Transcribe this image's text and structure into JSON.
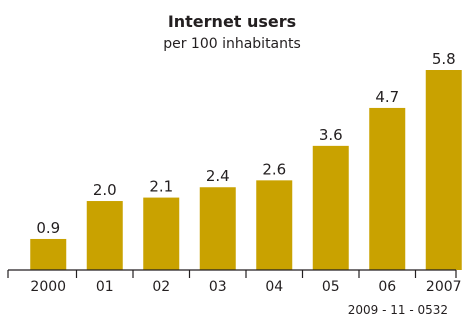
{
  "chart_data": {
    "type": "bar",
    "title": "Internet users",
    "subtitle": "per 100 inhabitants",
    "categories": [
      "2000",
      "01",
      "02",
      "03",
      "04",
      "05",
      "06",
      "2007"
    ],
    "values": [
      0.9,
      2.0,
      2.1,
      2.4,
      2.6,
      3.6,
      4.7,
      5.8
    ],
    "value_labels": [
      "0.9",
      "2.0",
      "2.1",
      "2.4",
      "2.6",
      "3.6",
      "4.7",
      "5.8"
    ],
    "ylim": [
      0,
      5.8
    ],
    "grid": false,
    "legend": "none",
    "bar_color": "#c9a200",
    "axis_color": "#231f20",
    "source": "2009 - 11 - 0532"
  }
}
